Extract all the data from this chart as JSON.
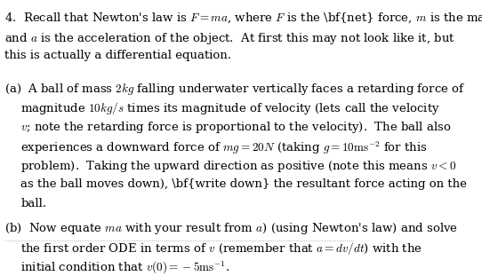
{
  "bg_color": "#ffffff",
  "text_color": "#000000",
  "figsize": [
    5.42,
    3.11
  ],
  "dpi": 100,
  "line1": "4. Recall that Newton’s law is ",
  "line1_bold": "F",
  "line1b": " = ",
  "line1c": "ma",
  "line1d": ", where ",
  "line1e": "F",
  "line1f": " is the ",
  "line1g": "net",
  "line1h": " force, ",
  "line1i": "m",
  "line1j": " is the mass",
  "para_intro": "4.  Recall that Newton’s law is $F = ma$, where $F$ is the \\textbf{net} force, $m$ is the mass\nand $a$ is the acceleration of the object.  At first this may not look like it, but\nthis is actually a differential equation.",
  "para_a": "(a)  A ball of mass $2kg$ falling underwater vertically faces a retarding force of\n     magnitude $10kg/s$ times its magnitude of velocity (lets call the velocity\n     $v$; note the retarding force is proportional to the velocity).  The ball also\n     experiences a downward force of $mg = 20N$ (taking $g = 10\\mathrm{ms}^{-2}$ for this\n     problem).  Taking the upward direction as positive (note this means $v < 0$\n     as the ball moves down), \\textbf{write down} the resultant force acting on the\n     ball.",
  "para_b": "(b)  Now equate $ma$ with your result from $a$) (using Newton’s law) and solve\n     the first order ODE in terms of $v$ (remember that $a = dv/dt$) with the\n     initial condition that $v(0) = -5\\mathrm{ms}^{-1}$.",
  "font_size": 9.5
}
